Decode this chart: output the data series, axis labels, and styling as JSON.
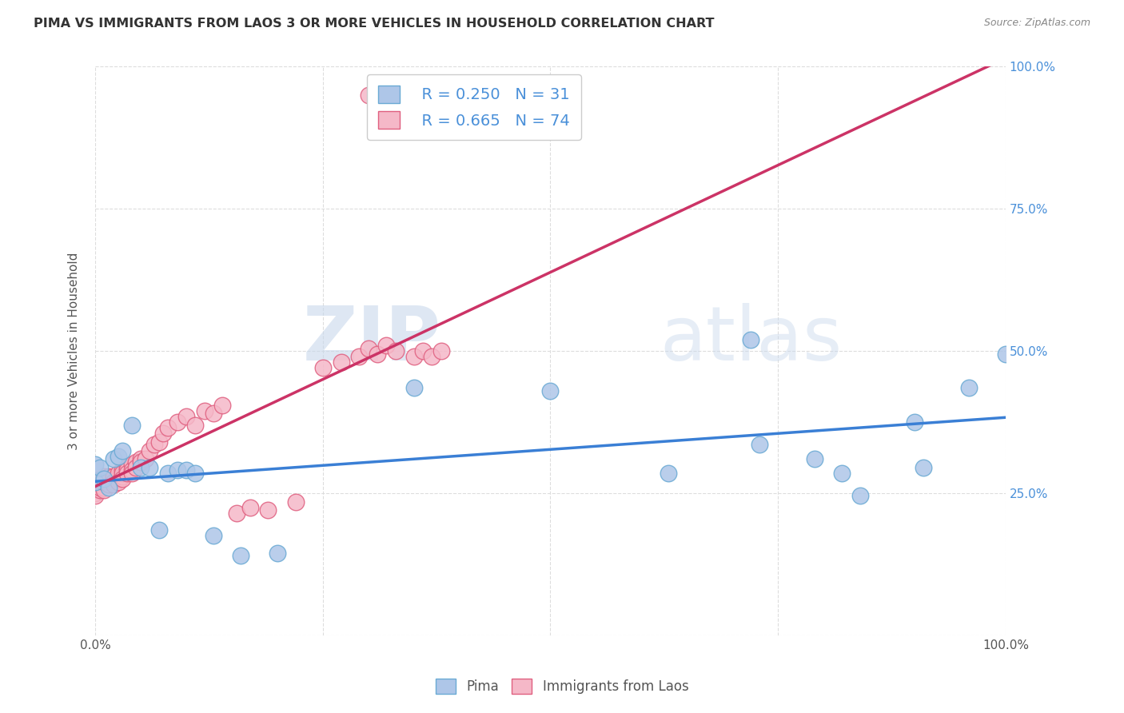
{
  "title": "PIMA VS IMMIGRANTS FROM LAOS 3 OR MORE VEHICLES IN HOUSEHOLD CORRELATION CHART",
  "source": "Source: ZipAtlas.com",
  "ylabel": "3 or more Vehicles in Household",
  "xlim": [
    0.0,
    1.0
  ],
  "ylim": [
    0.0,
    1.0
  ],
  "pima_color": "#aec6e8",
  "laos_color": "#f5b8c8",
  "pima_edge_color": "#6aaad4",
  "laos_edge_color": "#e06080",
  "regression_pima_color": "#3a7fd5",
  "regression_laos_color": "#cc3366",
  "watermark_zip": "ZIP",
  "watermark_atlas": "atlas",
  "pima_R": 0.25,
  "pima_N": 31,
  "laos_R": 0.665,
  "laos_N": 74,
  "pima_points_x": [
    0.0,
    0.0,
    0.005,
    0.01,
    0.015,
    0.02,
    0.025,
    0.03,
    0.04,
    0.05,
    0.06,
    0.07,
    0.08,
    0.09,
    0.1,
    0.11,
    0.13,
    0.16,
    0.2,
    0.35,
    0.5,
    0.63,
    0.72,
    0.73,
    0.79,
    0.82,
    0.84,
    0.9,
    0.91,
    0.96,
    1.0
  ],
  "pima_points_y": [
    0.3,
    0.27,
    0.295,
    0.275,
    0.26,
    0.31,
    0.315,
    0.325,
    0.37,
    0.295,
    0.295,
    0.185,
    0.285,
    0.29,
    0.29,
    0.285,
    0.175,
    0.14,
    0.145,
    0.435,
    0.43,
    0.285,
    0.52,
    0.335,
    0.31,
    0.285,
    0.245,
    0.375,
    0.295,
    0.435,
    0.495
  ],
  "laos_points_x": [
    0.0,
    0.0,
    0.0,
    0.0,
    0.0,
    0.0,
    0.005,
    0.005,
    0.005,
    0.005,
    0.005,
    0.01,
    0.01,
    0.01,
    0.01,
    0.01,
    0.01,
    0.01,
    0.015,
    0.015,
    0.015,
    0.015,
    0.015,
    0.02,
    0.02,
    0.02,
    0.02,
    0.02,
    0.025,
    0.025,
    0.025,
    0.025,
    0.03,
    0.03,
    0.03,
    0.03,
    0.035,
    0.035,
    0.035,
    0.04,
    0.04,
    0.04,
    0.045,
    0.045,
    0.05,
    0.05,
    0.055,
    0.06,
    0.065,
    0.07,
    0.075,
    0.08,
    0.09,
    0.1,
    0.11,
    0.12,
    0.13,
    0.14,
    0.155,
    0.17,
    0.19,
    0.22,
    0.25,
    0.27,
    0.29,
    0.3,
    0.31,
    0.32,
    0.33,
    0.35,
    0.36,
    0.37,
    0.38,
    0.3
  ],
  "laos_points_y": [
    0.27,
    0.275,
    0.265,
    0.26,
    0.25,
    0.245,
    0.275,
    0.27,
    0.265,
    0.255,
    0.26,
    0.28,
    0.27,
    0.265,
    0.26,
    0.255,
    0.27,
    0.275,
    0.27,
    0.275,
    0.27,
    0.265,
    0.28,
    0.27,
    0.275,
    0.28,
    0.27,
    0.265,
    0.28,
    0.275,
    0.285,
    0.27,
    0.29,
    0.28,
    0.285,
    0.275,
    0.295,
    0.29,
    0.285,
    0.3,
    0.29,
    0.285,
    0.305,
    0.295,
    0.31,
    0.305,
    0.31,
    0.325,
    0.335,
    0.34,
    0.355,
    0.365,
    0.375,
    0.385,
    0.37,
    0.395,
    0.39,
    0.405,
    0.215,
    0.225,
    0.22,
    0.235,
    0.47,
    0.48,
    0.49,
    0.505,
    0.495,
    0.51,
    0.5,
    0.49,
    0.5,
    0.49,
    0.5,
    0.95
  ],
  "background_color": "#ffffff",
  "grid_color": "#dddddd"
}
